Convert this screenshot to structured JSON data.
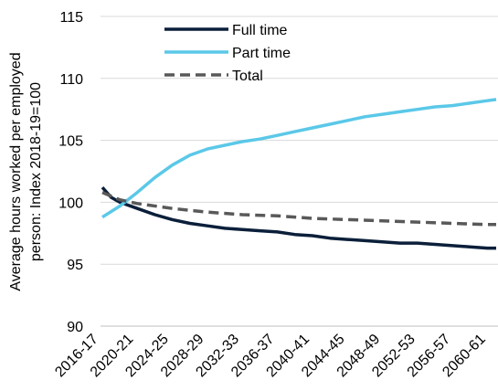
{
  "chart_data": {
    "type": "line",
    "ylabel_line1": "Average hours worked per employed",
    "ylabel_line2": "person:  Index 2018-19=100",
    "ylim": [
      90,
      115
    ],
    "yticks": [
      "90",
      "95",
      "100",
      "105",
      "110",
      "115"
    ],
    "ytick_values": [
      90,
      95,
      100,
      105,
      110,
      115
    ],
    "grid": "horizontal",
    "legend_position": "top-center",
    "xtick_labels": [
      "2016-17",
      "2020-21",
      "2024-25",
      "2028-29",
      "2032-33",
      "2036-37",
      "2040-41",
      "2044-45",
      "2048-49",
      "2052-53",
      "2056-57",
      "2060-61"
    ],
    "x_first": 2016,
    "x_last": 2061,
    "series": [
      {
        "name": "Full time",
        "color": "#0b1f3a",
        "style": "solid",
        "x": [
          2016,
          2017,
          2018,
          2020,
          2022,
          2024,
          2026,
          2028,
          2030,
          2032,
          2034,
          2036,
          2038,
          2040,
          2042,
          2044,
          2046,
          2048,
          2050,
          2052,
          2054,
          2056,
          2058,
          2060,
          2061
        ],
        "values": [
          101.2,
          100.4,
          100.0,
          99.5,
          99.0,
          98.6,
          98.3,
          98.1,
          97.9,
          97.8,
          97.7,
          97.6,
          97.4,
          97.3,
          97.1,
          97.0,
          96.9,
          96.8,
          96.7,
          96.7,
          96.6,
          96.5,
          96.4,
          96.3,
          96.3
        ]
      },
      {
        "name": "Part time",
        "color": "#5bc8e8",
        "style": "solid",
        "x": [
          2016,
          2018,
          2020,
          2022,
          2024,
          2026,
          2028,
          2030,
          2032,
          2034,
          2036,
          2038,
          2040,
          2042,
          2044,
          2046,
          2048,
          2050,
          2052,
          2054,
          2056,
          2058,
          2060,
          2061
        ],
        "values": [
          98.8,
          99.7,
          100.8,
          102.0,
          103.0,
          103.8,
          104.3,
          104.6,
          104.9,
          105.1,
          105.4,
          105.7,
          106.0,
          106.3,
          106.6,
          106.9,
          107.1,
          107.3,
          107.5,
          107.7,
          107.8,
          108.0,
          108.2,
          108.3
        ]
      },
      {
        "name": "Total",
        "color": "#595959",
        "style": "dashed",
        "x": [
          2016,
          2018,
          2020,
          2024,
          2028,
          2032,
          2036,
          2040,
          2044,
          2048,
          2052,
          2056,
          2060,
          2061
        ],
        "values": [
          100.8,
          100.2,
          99.9,
          99.5,
          99.2,
          99.0,
          98.9,
          98.7,
          98.6,
          98.5,
          98.4,
          98.3,
          98.2,
          98.2
        ]
      }
    ]
  }
}
